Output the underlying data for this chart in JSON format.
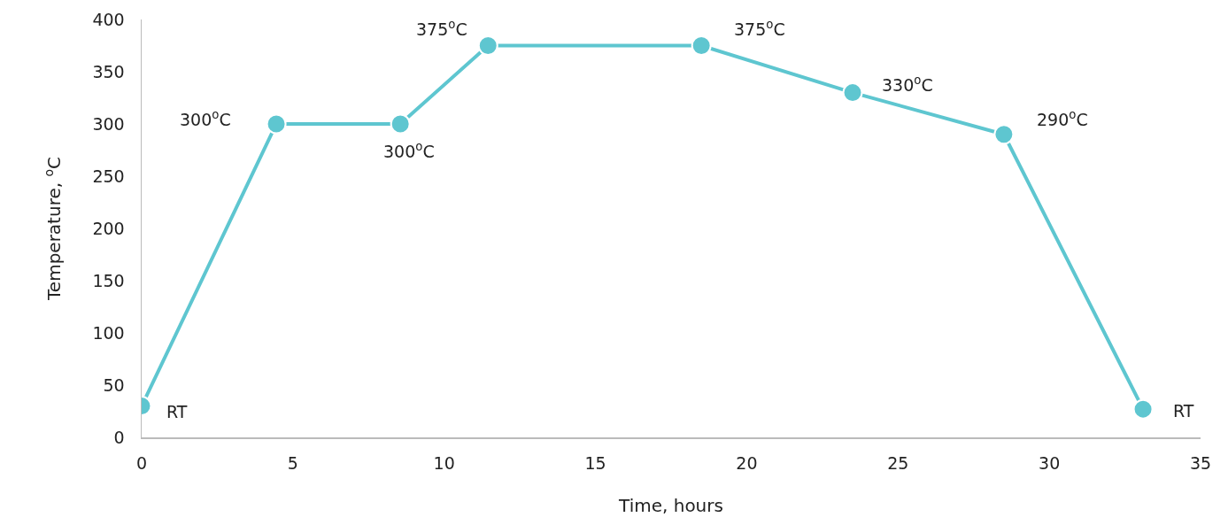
{
  "chart_data": {
    "type": "line",
    "xlabel": "Time, hours",
    "ylabel": "Temperature, $^{o}$C",
    "x": [
      0,
      4.45,
      8.55,
      11.45,
      18.5,
      23.5,
      28.5,
      33.1
    ],
    "series": [
      {
        "color": "#5ec6d0",
        "values": [
          30,
          300,
          300,
          375,
          375,
          330,
          290,
          27
        ]
      }
    ],
    "xlim": [
      0,
      35
    ],
    "xticks": [
      0,
      5,
      10,
      15,
      20,
      25,
      30,
      35
    ],
    "ylim": [
      0,
      400
    ],
    "yticks": [
      0,
      50,
      100,
      150,
      200,
      250,
      300,
      350,
      400
    ],
    "grid": false,
    "marker": "circle",
    "line_style": "solid",
    "annotations": [
      {
        "text": "RT",
        "x": 0,
        "y": 30
      },
      {
        "text": "300$^{o}$C",
        "x": 4.45,
        "y": 300
      },
      {
        "text": "300$^{o}$C",
        "x": 8.55,
        "y": 300
      },
      {
        "text": "375$^{o}$C",
        "x": 11.45,
        "y": 375
      },
      {
        "text": "375$^{o}$C",
        "x": 18.5,
        "y": 375
      },
      {
        "text": "330$^{o}$C",
        "x": 23.5,
        "y": 330
      },
      {
        "text": "290$^{o}$C",
        "x": 28.5,
        "y": 290
      },
      {
        "text": "RT",
        "x": 33.1,
        "y": 27
      }
    ]
  }
}
